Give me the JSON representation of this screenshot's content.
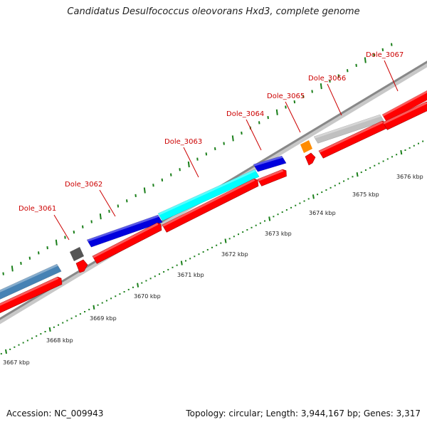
{
  "title": "Candidatus Desulfococcus oleovorans Hxd3, complete genome",
  "footer": {
    "accession": "Accession: NC_009943",
    "summary": "Topology: circular; Length: 3,944,167 bp; Genes: 3,317"
  },
  "colors": {
    "label": "#cc0000",
    "cds": "#ff0000",
    "backbone": "#888888",
    "tick": "#1a7f1a"
  },
  "scale_labels": [
    "3667 kbp",
    "3668 kbp",
    "3669 kbp",
    "3670 kbp",
    "3671 kbp",
    "3672 kbp",
    "3673 kbp",
    "3674 kbp",
    "3675 kbp",
    "3676 kbp"
  ],
  "genes": [
    {
      "label": "Dole_3061",
      "color": "#4682b4"
    },
    {
      "label": "Dole_3062",
      "color": "#0000dd"
    },
    {
      "label": "Dole_3063",
      "color": "#00ffff"
    },
    {
      "label": "Dole_3064",
      "color": "#0000dd"
    },
    {
      "label": "Dole_3065",
      "color": "#ff8c00"
    },
    {
      "label": "Dole_3066",
      "color": "#c0c0c0"
    },
    {
      "label": "Dole_3067",
      "color": "#ff0000"
    }
  ]
}
